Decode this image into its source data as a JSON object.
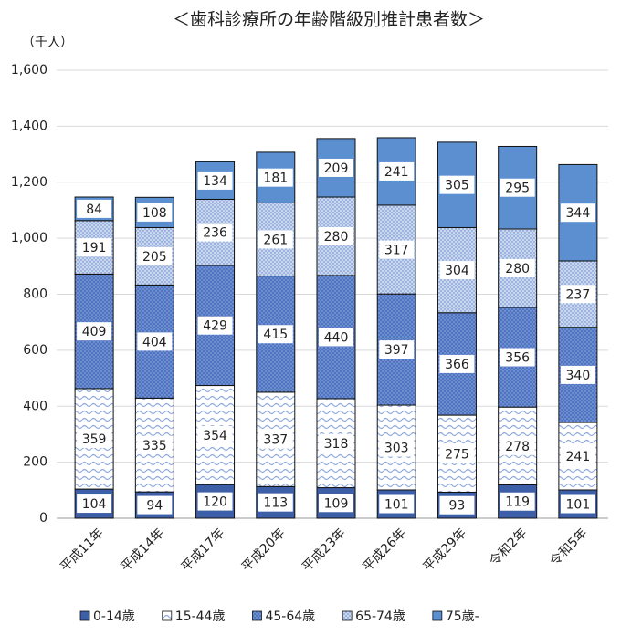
{
  "chart_data": {
    "type": "stacked_bar",
    "title": "＜歯科診療所の年齢階級別推計患者数＞",
    "y_axis_label": "（千人）",
    "categories": [
      "平成11年",
      "平成14年",
      "平成17年",
      "平成20年",
      "平成23年",
      "平成26年",
      "平成29年",
      "令和2年",
      "令和5年"
    ],
    "series": [
      {
        "name": "0-14歳",
        "color": "#3d5fa8",
        "pattern": "solid",
        "values": [
          104,
          94,
          120,
          113,
          109,
          101,
          93,
          119,
          101
        ]
      },
      {
        "name": "15-44歳",
        "color": "#8faadc",
        "pattern": "waves",
        "values": [
          359,
          335,
          354,
          337,
          318,
          303,
          275,
          278,
          241
        ]
      },
      {
        "name": "45-64歳",
        "color": "#4f74c2",
        "pattern": "dots",
        "values": [
          409,
          404,
          429,
          415,
          440,
          397,
          366,
          356,
          340
        ]
      },
      {
        "name": "65-74歳",
        "color": "#c9d7ef",
        "pattern": "dots",
        "values": [
          191,
          205,
          236,
          261,
          280,
          317,
          304,
          280,
          237
        ]
      },
      {
        "name": "75歳-",
        "color": "#5b8fd0",
        "pattern": "solid",
        "values": [
          84,
          108,
          134,
          181,
          209,
          241,
          305,
          295,
          344
        ]
      }
    ],
    "ylim": [
      0,
      1600
    ],
    "yticks": [
      0,
      200,
      400,
      600,
      800,
      {
        "value": 1000,
        "label": "1,000"
      },
      {
        "value": 1200,
        "label": "1,200"
      },
      {
        "value": 1400,
        "label": "1,400"
      },
      {
        "value": 1600,
        "label": "1,600"
      }
    ],
    "grid": true,
    "legend": "bottom"
  }
}
